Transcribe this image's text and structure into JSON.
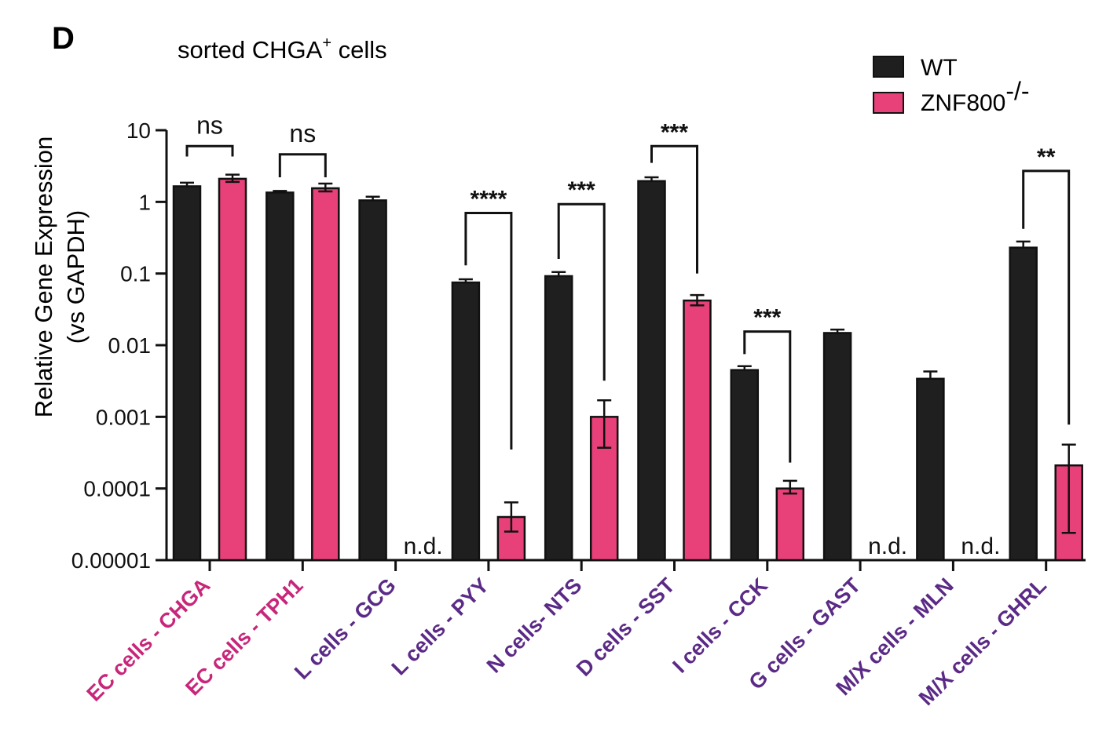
{
  "panel_label": "D",
  "colors": {
    "wt": "#1f1f1f",
    "ko": "#e8417a",
    "label_ec": "#c8267a",
    "label_other": "#5b2a86",
    "axis": "#111111"
  },
  "chart_data": {
    "type": "bar",
    "title_main": "sorted CHGA",
    "title_sup": "+",
    "title_tail": " cells",
    "ylabel_line1": "Relative Gene Expression",
    "ylabel_line2": "(vs GAPDH)",
    "y_scale": "log",
    "ylim": [
      1e-05,
      10
    ],
    "y_ticks": [
      {
        "value": 10,
        "label": "10"
      },
      {
        "value": 1,
        "label": "1"
      },
      {
        "value": 0.1,
        "label": "0.1"
      },
      {
        "value": 0.01,
        "label": "0.01"
      },
      {
        "value": 0.001,
        "label": "0.001"
      },
      {
        "value": 0.0001,
        "label": "0.0001"
      },
      {
        "value": 1e-05,
        "label": "0.00001"
      }
    ],
    "legend_placement": "top-right",
    "legend": [
      {
        "label": "WT",
        "sup": ""
      },
      {
        "label": "ZNF800",
        "sup": "-/-"
      }
    ],
    "categories": [
      {
        "label": "EC cells - CHGA",
        "group": "ec"
      },
      {
        "label": "EC cells - TPH1",
        "group": "ec"
      },
      {
        "label": "L cells - GCG",
        "group": "other"
      },
      {
        "label": "L cells - PYY",
        "group": "other"
      },
      {
        "label": "N cells- NTS",
        "group": "other"
      },
      {
        "label": "D cells - SST",
        "group": "other"
      },
      {
        "label": "I cells - CCK",
        "group": "other"
      },
      {
        "label": "G cells - GAST",
        "group": "other"
      },
      {
        "label": "M/X cells - MLN",
        "group": "other"
      },
      {
        "label": "M/X cells - GHRL",
        "group": "other"
      }
    ],
    "series": [
      {
        "name": "WT",
        "values": [
          1.65,
          1.35,
          1.05,
          0.075,
          0.092,
          1.95,
          0.0045,
          0.0148,
          0.0034,
          0.23
        ],
        "err_hi": [
          1.85,
          1.42,
          1.18,
          0.083,
          0.105,
          2.2,
          0.0051,
          0.0165,
          0.0043,
          0.28
        ],
        "err_lo": [
          1.65,
          1.35,
          1.05,
          0.075,
          0.092,
          1.95,
          0.0045,
          0.0148,
          0.0034,
          0.23
        ]
      },
      {
        "name": "ZNF800",
        "values": [
          2.1,
          1.55,
          null,
          4e-05,
          0.001,
          0.042,
          0.0001,
          null,
          null,
          0.00021
        ],
        "err_hi": [
          2.4,
          1.8,
          null,
          6.4e-05,
          0.0017,
          0.05,
          0.000128,
          null,
          null,
          0.00041
        ],
        "err_lo": [
          1.9,
          1.4,
          null,
          2.5e-05,
          0.00037,
          0.036,
          8.5e-05,
          null,
          null,
          2.4e-05
        ]
      }
    ],
    "nd_label": "n.d.",
    "significance": [
      {
        "category": 0,
        "label": "ns",
        "y_top": 6,
        "wt_end": 4.3,
        "ko_end": 4.3
      },
      {
        "category": 1,
        "label": "ns",
        "y_top": 4.6,
        "wt_end": 2.2,
        "ko_end": 2.2
      },
      {
        "category": 3,
        "label": "****",
        "y_top": 0.7,
        "wt_end": 0.13,
        "ko_end": 0.00035
      },
      {
        "category": 4,
        "label": "***",
        "y_top": 0.93,
        "wt_end": 0.16,
        "ko_end": 0.0032
      },
      {
        "category": 5,
        "label": "***",
        "y_top": 6,
        "wt_end": 3.5,
        "ko_end": 0.1
      },
      {
        "category": 6,
        "label": "***",
        "y_top": 0.0155,
        "wt_end": 0.0075,
        "ko_end": 0.00023
      },
      {
        "category": 9,
        "label": "**",
        "y_top": 2.7,
        "wt_end": 0.42,
        "ko_end": 0.00078
      }
    ]
  }
}
